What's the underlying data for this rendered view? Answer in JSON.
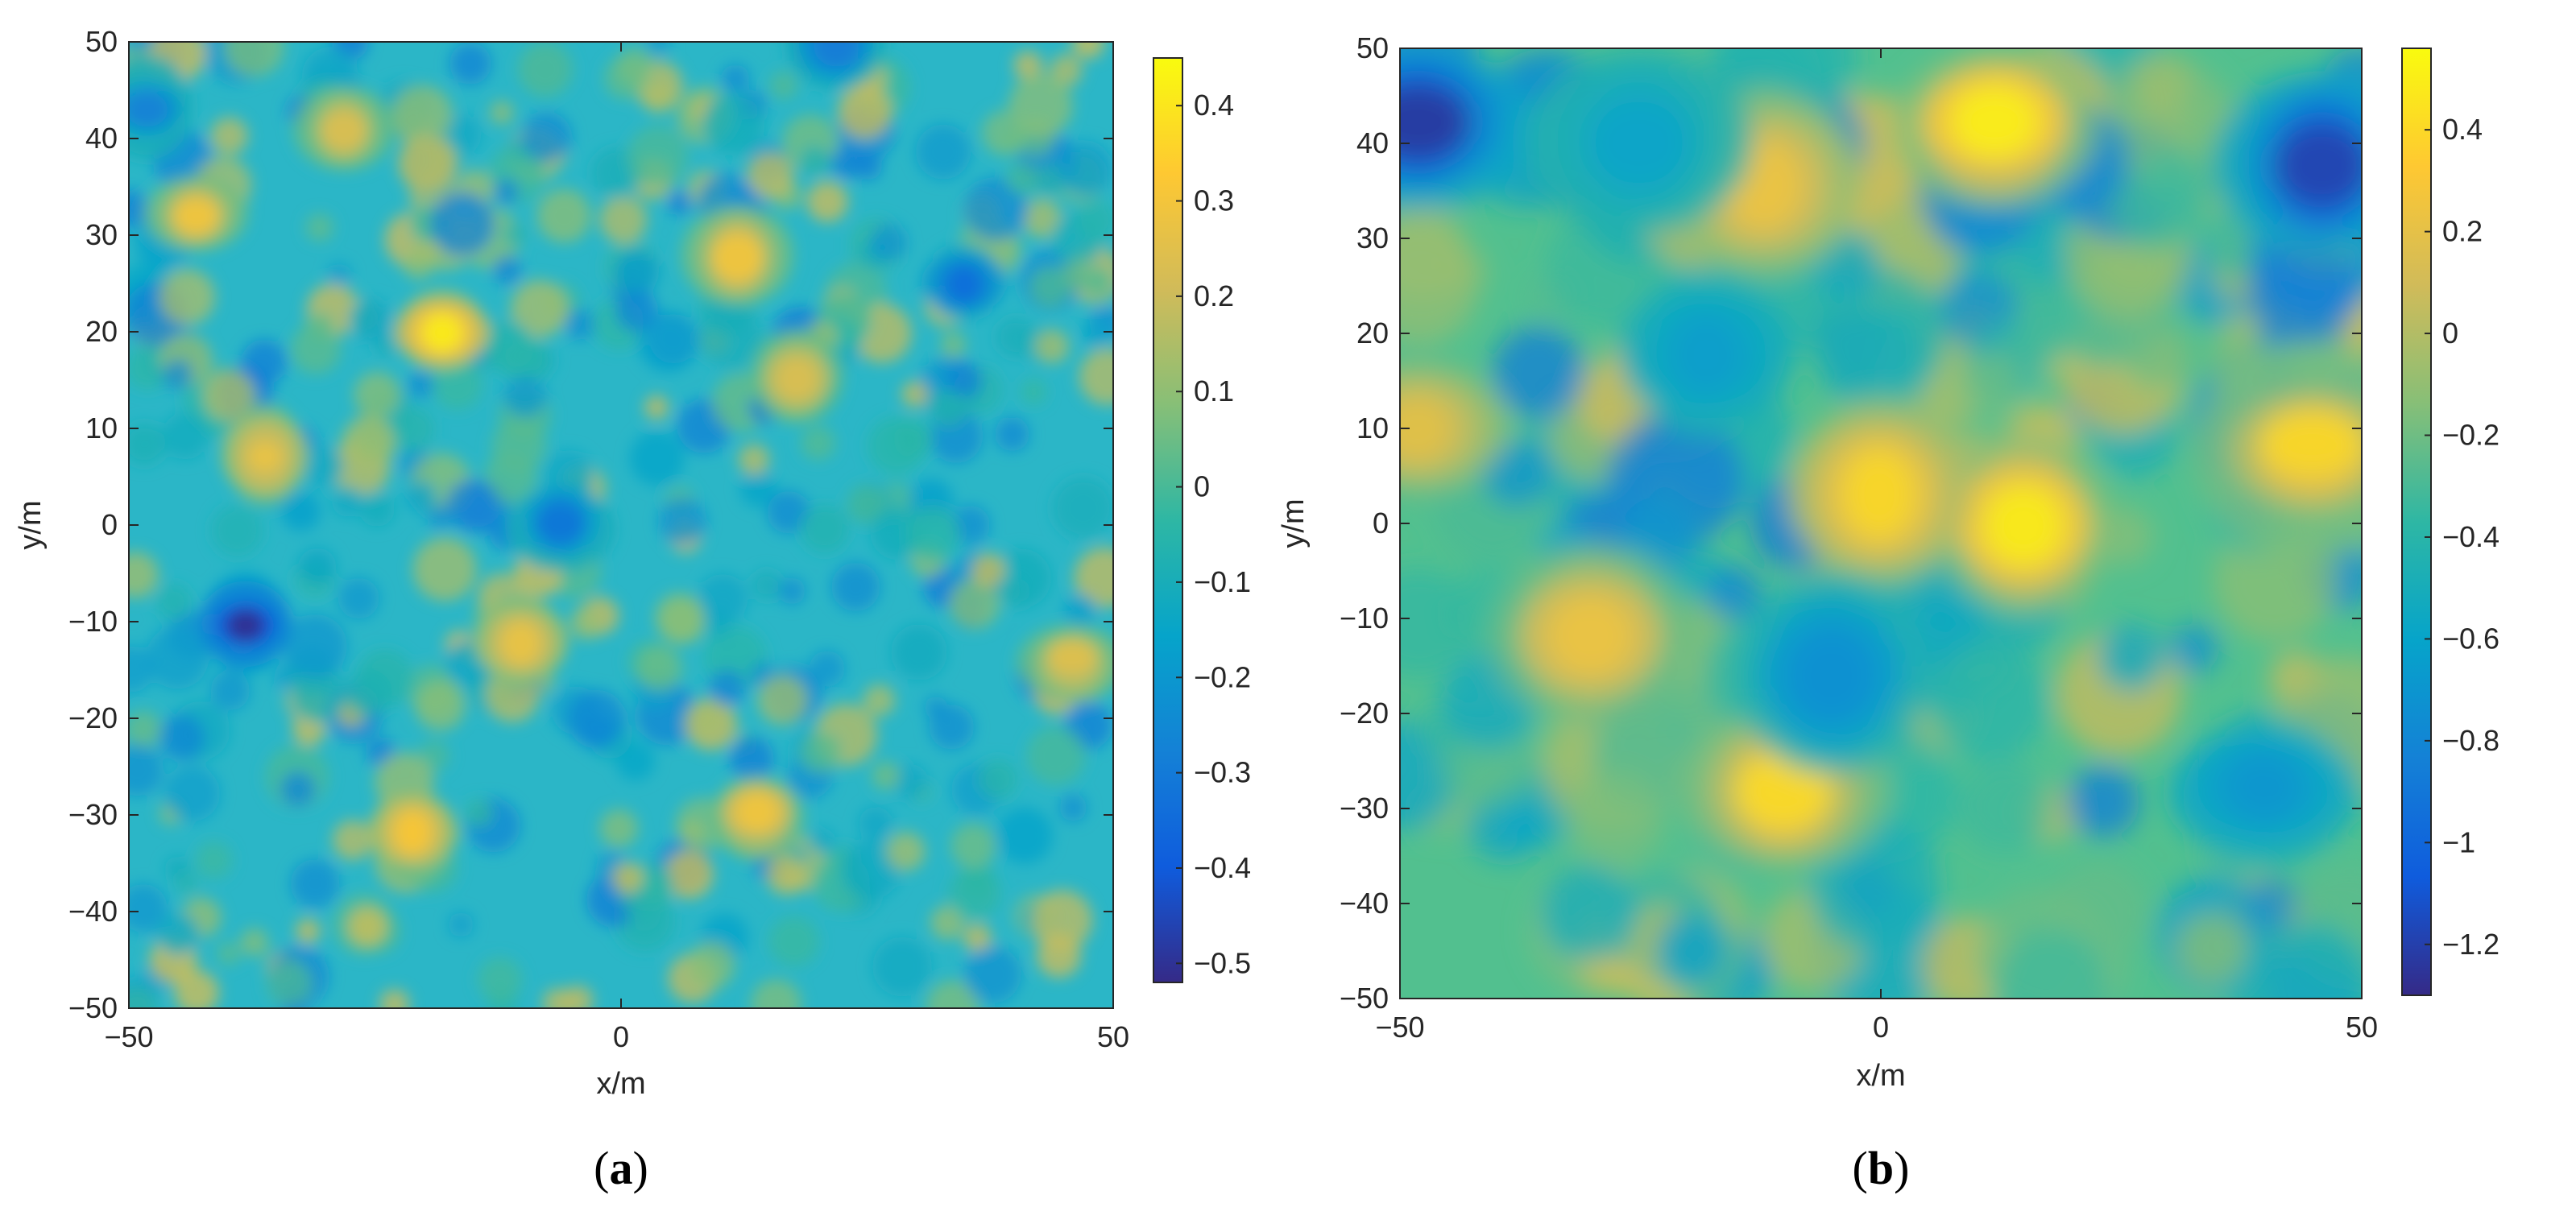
{
  "chart_data": [
    {
      "type": "heatmap",
      "panel_label": "a",
      "xlabel": "x/m",
      "ylabel": "y/m",
      "xlim": [
        -50,
        50
      ],
      "ylim": [
        -50,
        50
      ],
      "xticks": [
        -50,
        0,
        50
      ],
      "yticks": [
        -50,
        -40,
        -30,
        -20,
        -10,
        0,
        10,
        20,
        30,
        40,
        50
      ],
      "colormap": "parula",
      "colorbar": {
        "min": -0.52,
        "max": 0.45,
        "ticks": [
          0.4,
          0.3,
          0.2,
          0.1,
          0,
          -0.1,
          -0.2,
          -0.3,
          -0.4,
          -0.5
        ],
        "tick_labels": [
          "0.4",
          "0.3",
          "0.2",
          "0.1",
          "0",
          "−0.1",
          "−0.2",
          "−0.3",
          "−0.4",
          "−0.5"
        ]
      },
      "grid": false,
      "field_scale": "fine",
      "hotspots": [
        {
          "x": -18,
          "y": 20,
          "value": 0.42
        },
        {
          "x": -21,
          "y": -32,
          "value": 0.32
        },
        {
          "x": 12,
          "y": 28,
          "value": 0.3
        },
        {
          "x": -43,
          "y": 32,
          "value": 0.3
        },
        {
          "x": 14,
          "y": -30,
          "value": 0.3
        },
        {
          "x": -10,
          "y": -12,
          "value": 0.28
        },
        {
          "x": -36,
          "y": 7,
          "value": 0.28
        },
        {
          "x": 46,
          "y": -14,
          "value": 0.25
        },
        {
          "x": -28,
          "y": 41,
          "value": 0.24
        },
        {
          "x": 18,
          "y": 15,
          "value": 0.24
        },
        {
          "x": -38,
          "y": -10,
          "value": -0.52
        },
        {
          "x": 35,
          "y": 25,
          "value": -0.35
        },
        {
          "x": -6,
          "y": 0,
          "value": -0.32
        },
        {
          "x": 22,
          "y": 50,
          "value": -0.3
        },
        {
          "x": -48,
          "y": 43,
          "value": -0.28
        }
      ]
    },
    {
      "type": "heatmap",
      "panel_label": "b",
      "xlabel": "x/m",
      "ylabel": "y/m",
      "xlim": [
        -50,
        50
      ],
      "ylim": [
        -50,
        50
      ],
      "xticks": [
        -50,
        0,
        50
      ],
      "yticks": [
        -50,
        -40,
        -30,
        -20,
        -10,
        0,
        10,
        20,
        30,
        40,
        50
      ],
      "colormap": "parula",
      "colorbar": {
        "min": -1.3,
        "max": 0.56,
        "ticks": [
          0.4,
          0.2,
          0,
          -0.2,
          -0.4,
          -0.6,
          -0.8,
          -1,
          -1.2
        ],
        "tick_labels": [
          "0.4",
          "0.2",
          "0",
          "−0.2",
          "−0.4",
          "−0.6",
          "−0.8",
          "−1",
          "−1.2"
        ]
      },
      "grid": false,
      "field_scale": "coarse",
      "hotspots": [
        {
          "x": 12,
          "y": 42,
          "value": 0.52
        },
        {
          "x": 15,
          "y": 0,
          "value": 0.5
        },
        {
          "x": 0,
          "y": 3,
          "value": 0.4
        },
        {
          "x": 45,
          "y": 8,
          "value": 0.4
        },
        {
          "x": -10,
          "y": -28,
          "value": 0.42
        },
        {
          "x": -30,
          "y": -12,
          "value": 0.25
        },
        {
          "x": -12,
          "y": 36,
          "value": 0.25
        },
        {
          "x": -48,
          "y": 10,
          "value": 0.2
        },
        {
          "x": -48,
          "y": 42,
          "value": -1.25
        },
        {
          "x": 46,
          "y": 38,
          "value": -1.2
        },
        {
          "x": -5,
          "y": -16,
          "value": -0.75
        },
        {
          "x": 40,
          "y": -28,
          "value": -0.7
        },
        {
          "x": -18,
          "y": 18,
          "value": -0.65
        },
        {
          "x": -25,
          "y": 40,
          "value": -0.6
        }
      ]
    }
  ]
}
